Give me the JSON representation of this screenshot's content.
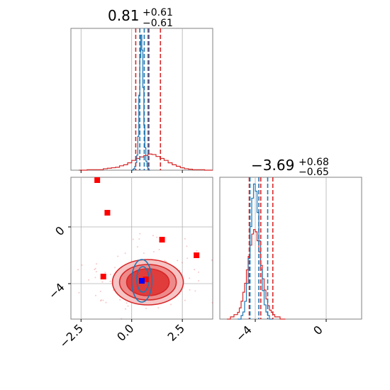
{
  "chart_data": {
    "type": "corner",
    "colors": {
      "posterior_a": "#d62728",
      "posterior_b": "#1f77b4",
      "points": "#ff0000",
      "truth": "#0000ff"
    },
    "grid": true,
    "panels": {
      "param1_hist": {
        "title_value": "0.81",
        "title_plus": "+0.61",
        "title_minus": "−0.61",
        "xlim": [
          -3,
          4
        ],
        "red_quantiles": [
          0.2,
          0.81,
          1.42
        ],
        "blue_quantiles": [
          0.4,
          0.62,
          0.85
        ],
        "red_hist": {
          "x0": -2.6,
          "dx": 0.2,
          "counts": [
            0,
            0,
            1,
            1,
            1,
            1,
            3,
            4,
            5,
            6,
            9,
            11,
            15,
            20,
            24,
            27,
            30,
            33,
            32,
            28,
            24,
            20,
            15,
            11,
            8,
            5,
            3,
            2,
            1,
            1,
            1,
            0,
            0
          ]
        },
        "blue_hist": {
          "x0": 0.0,
          "dx": 0.05,
          "counts": [
            0,
            1,
            2,
            5,
            10,
            20,
            45,
            100,
            150,
            180,
            160,
            110,
            60,
            30,
            12,
            5,
            2,
            0
          ]
        }
      },
      "param2_hist": {
        "title_value": "−3.69",
        "title_plus": "+0.68",
        "title_minus": "−0.65",
        "xlim": [
          -6,
          2
        ],
        "red_quantiles": [
          -4.34,
          -3.69,
          -3.01
        ],
        "blue_quantiles": [
          -4.3,
          -3.8,
          -3.3
        ],
        "red_hist": {
          "x0": -5.6,
          "dx": 0.1,
          "counts": [
            0,
            0,
            1,
            1,
            2,
            2,
            3,
            5,
            8,
            12,
            16,
            22,
            28,
            33,
            38,
            40,
            39,
            35,
            30,
            24,
            18,
            13,
            9,
            6,
            4,
            3,
            2,
            1,
            1,
            1,
            0,
            0,
            0
          ]
        },
        "blue_hist": {
          "x0": -5.0,
          "dx": 0.1,
          "counts": [
            0,
            0,
            1,
            2,
            5,
            10,
            17,
            26,
            34,
            38,
            36,
            30,
            22,
            14,
            8,
            4,
            2,
            1,
            0,
            0
          ]
        }
      },
      "joint": {
        "xlim": [
          -3,
          4
        ],
        "ylim": [
          -6.5,
          3.5
        ],
        "red_contours": [
          {
            "cx": 0.8,
            "cy": -3.9,
            "rx": 1.05,
            "ry": 0.95
          },
          {
            "cx": 0.8,
            "cy": -3.9,
            "rx": 1.4,
            "ry": 1.25
          },
          {
            "cx": 0.8,
            "cy": -3.9,
            "rx": 1.75,
            "ry": 1.6
          }
        ],
        "blue_contours": [
          {
            "cx": 0.55,
            "cy": -3.7,
            "rx": 0.3,
            "ry": 0.9
          },
          {
            "cx": 0.5,
            "cy": -3.8,
            "rx": 0.5,
            "ry": 1.5
          }
        ],
        "points": [
          {
            "x": -1.7,
            "y": 3.3
          },
          {
            "x": -1.2,
            "y": 1.0
          },
          {
            "x": 1.5,
            "y": -0.9
          },
          {
            "x": 3.2,
            "y": -2.0
          },
          {
            "x": -1.4,
            "y": -3.5
          },
          {
            "x": 0.7,
            "y": -3.7
          }
        ],
        "truth": {
          "x": 0.5,
          "y": -3.8
        }
      }
    },
    "x_ticks_param1": [
      "−2.5",
      "0.0",
      "2.5"
    ],
    "x_ticks_param1_values": [
      -2.5,
      0,
      2.5
    ],
    "y_ticks_param2": [
      "0",
      "−4"
    ],
    "y_ticks_param2_values": [
      0,
      -4
    ],
    "x_ticks_param2": [
      "−4",
      "0"
    ],
    "x_ticks_param2_values": [
      -4,
      0
    ]
  }
}
